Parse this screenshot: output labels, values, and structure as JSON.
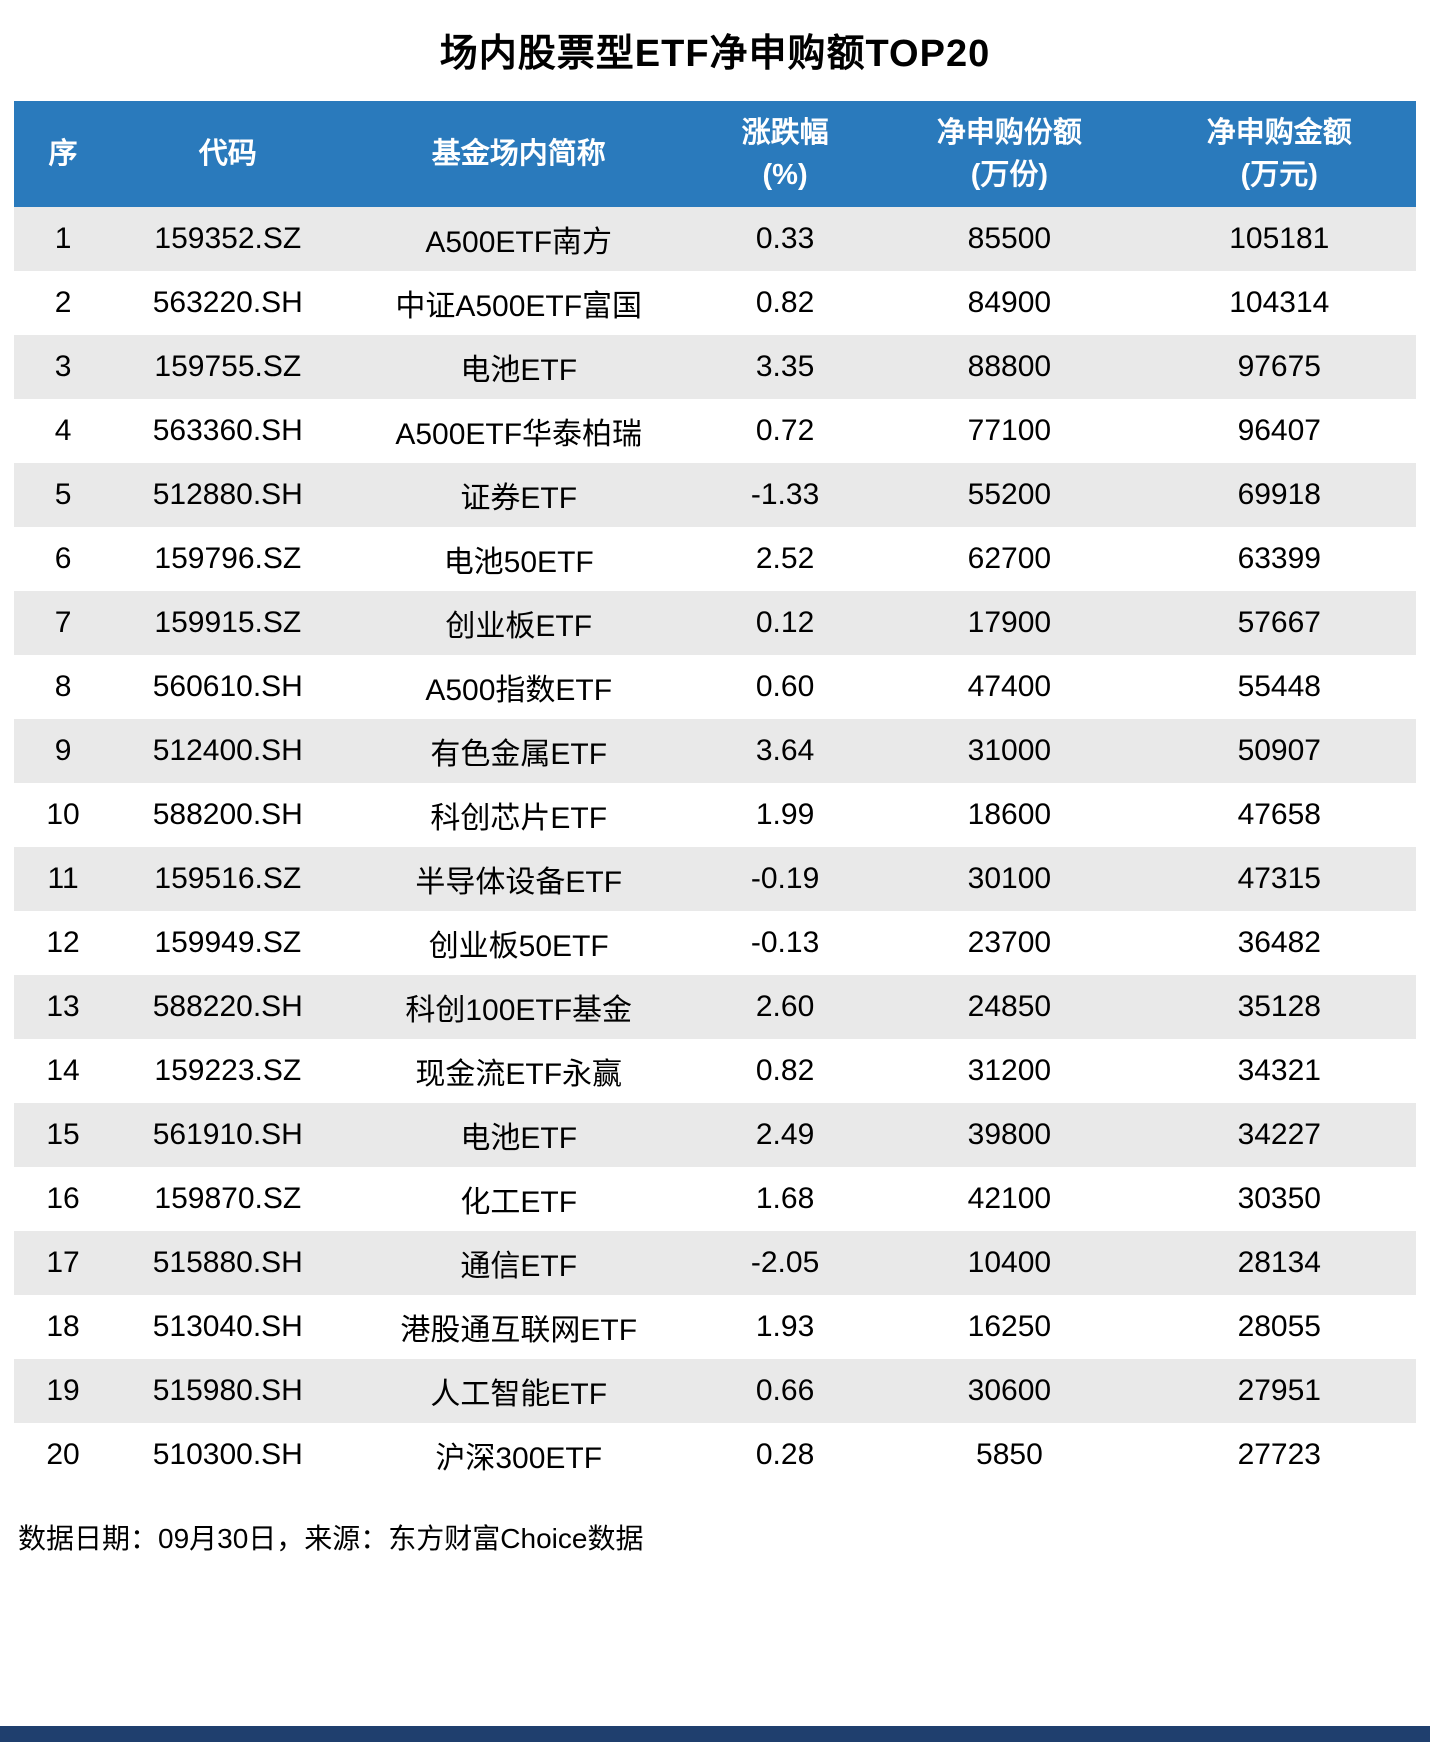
{
  "title": "场内股票型ETF净申购额TOP20",
  "footer": {
    "text": "数据日期：09月30日，来源：东方财富Choice数据"
  },
  "colors": {
    "header_bg": "#2a7abc",
    "alt_row_bg": "#e9e9e9",
    "bottom_bar": "#1f3f6e",
    "header_text": "#ffffff",
    "body_text": "#000000"
  },
  "chart_data": {
    "type": "table",
    "title": "场内股票型ETF净申购额TOP20",
    "columns": [
      {
        "label": "序",
        "line1": "序",
        "line2": ""
      },
      {
        "label": "代码",
        "line1": "代码",
        "line2": ""
      },
      {
        "label": "基金场内简称",
        "line1": "基金场内简称",
        "line2": ""
      },
      {
        "label": "涨跌幅(%)",
        "line1": "涨跌幅",
        "line2": "(%)"
      },
      {
        "label": "净申购份额(万份)",
        "line1": "净申购份额",
        "line2": "(万份)"
      },
      {
        "label": "净申购金额(万元)",
        "line1": "净申购金额",
        "line2": "(万元)"
      }
    ],
    "rows": [
      [
        "1",
        "159352.SZ",
        "A500ETF南方",
        "0.33",
        "85500",
        "105181"
      ],
      [
        "2",
        "563220.SH",
        "中证A500ETF富国",
        "0.82",
        "84900",
        "104314"
      ],
      [
        "3",
        "159755.SZ",
        "电池ETF",
        "3.35",
        "88800",
        "97675"
      ],
      [
        "4",
        "563360.SH",
        "A500ETF华泰柏瑞",
        "0.72",
        "77100",
        "96407"
      ],
      [
        "5",
        "512880.SH",
        "证券ETF",
        "-1.33",
        "55200",
        "69918"
      ],
      [
        "6",
        "159796.SZ",
        "电池50ETF",
        "2.52",
        "62700",
        "63399"
      ],
      [
        "7",
        "159915.SZ",
        "创业板ETF",
        "0.12",
        "17900",
        "57667"
      ],
      [
        "8",
        "560610.SH",
        "A500指数ETF",
        "0.60",
        "47400",
        "55448"
      ],
      [
        "9",
        "512400.SH",
        "有色金属ETF",
        "3.64",
        "31000",
        "50907"
      ],
      [
        "10",
        "588200.SH",
        "科创芯片ETF",
        "1.99",
        "18600",
        "47658"
      ],
      [
        "11",
        "159516.SZ",
        "半导体设备ETF",
        "-0.19",
        "30100",
        "47315"
      ],
      [
        "12",
        "159949.SZ",
        "创业板50ETF",
        "-0.13",
        "23700",
        "36482"
      ],
      [
        "13",
        "588220.SH",
        "科创100ETF基金",
        "2.60",
        "24850",
        "35128"
      ],
      [
        "14",
        "159223.SZ",
        "现金流ETF永赢",
        "0.82",
        "31200",
        "34321"
      ],
      [
        "15",
        "561910.SH",
        "电池ETF",
        "2.49",
        "39800",
        "34227"
      ],
      [
        "16",
        "159870.SZ",
        "化工ETF",
        "1.68",
        "42100",
        "30350"
      ],
      [
        "17",
        "515880.SH",
        "通信ETF",
        "-2.05",
        "10400",
        "28134"
      ],
      [
        "18",
        "513040.SH",
        "港股通互联网ETF",
        "1.93",
        "16250",
        "28055"
      ],
      [
        "19",
        "515980.SH",
        "人工智能ETF",
        "0.66",
        "30600",
        "27951"
      ],
      [
        "20",
        "510300.SH",
        "沪深300ETF",
        "0.28",
        "5850",
        "27723"
      ]
    ]
  }
}
